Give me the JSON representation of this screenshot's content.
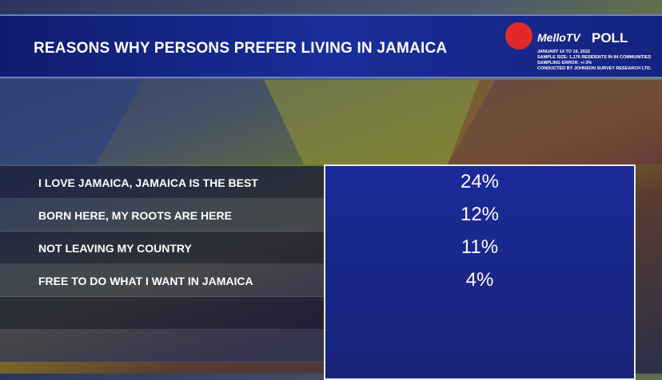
{
  "header": {
    "title": "REASONS WHY PERSONS PREFER LIVING IN JAMAICA",
    "brand": "MelloTV",
    "poll": "POLL",
    "info": [
      "JANUARY 14 TO 16, 2022",
      "SAMPLE SIZE: 1,176  RESIDENTS IN 84 COMMUNITIES",
      "SAMPLING ERROR: +/-3%",
      "CONDUCTED BY JOHNSON SURVEY RESEARCH LTD."
    ]
  },
  "table": {
    "rows": [
      [
        "I LOVE JAMAICA, JAMAICA IS THE BEST",
        "24%"
      ],
      [
        "BORN HERE, MY ROOTS ARE HERE",
        "12%"
      ],
      [
        "NOT LEAVING MY COUNTRY",
        "11%"
      ],
      [
        "FREE TO DO WHAT I WANT IN JAMAICA",
        "4%"
      ]
    ]
  }
}
